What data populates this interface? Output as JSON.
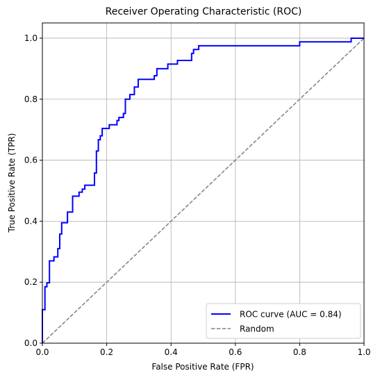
{
  "chart_data": {
    "type": "line",
    "title": "Receiver Operating Characteristic (ROC)",
    "xlabel": "False Positive Rate (FPR)",
    "ylabel": "True Positive Rate (TPR)",
    "xlim": [
      0,
      1
    ],
    "ylim": [
      0,
      1.05
    ],
    "xticks": [
      "0.0",
      "0.2",
      "0.4",
      "0.6",
      "0.8",
      "1.0"
    ],
    "yticks": [
      "0.0",
      "0.2",
      "0.4",
      "0.6",
      "0.8",
      "1.0"
    ],
    "grid": true,
    "legend_position": "bottom-right",
    "series": [
      {
        "name": "ROC curve (AUC = 0.84)",
        "color": "#0000ff",
        "style": "solid",
        "points": [
          [
            0.0,
            0.0
          ],
          [
            0.0,
            0.11
          ],
          [
            0.008,
            0.11
          ],
          [
            0.008,
            0.185
          ],
          [
            0.014,
            0.185
          ],
          [
            0.014,
            0.198
          ],
          [
            0.022,
            0.198
          ],
          [
            0.022,
            0.27
          ],
          [
            0.036,
            0.27
          ],
          [
            0.036,
            0.283
          ],
          [
            0.048,
            0.283
          ],
          [
            0.048,
            0.31
          ],
          [
            0.054,
            0.31
          ],
          [
            0.054,
            0.358
          ],
          [
            0.06,
            0.358
          ],
          [
            0.06,
            0.395
          ],
          [
            0.078,
            0.395
          ],
          [
            0.078,
            0.43
          ],
          [
            0.094,
            0.43
          ],
          [
            0.094,
            0.482
          ],
          [
            0.114,
            0.482
          ],
          [
            0.114,
            0.495
          ],
          [
            0.124,
            0.495
          ],
          [
            0.124,
            0.505
          ],
          [
            0.132,
            0.505
          ],
          [
            0.132,
            0.518
          ],
          [
            0.162,
            0.518
          ],
          [
            0.162,
            0.558
          ],
          [
            0.168,
            0.558
          ],
          [
            0.168,
            0.63
          ],
          [
            0.174,
            0.63
          ],
          [
            0.174,
            0.667
          ],
          [
            0.18,
            0.667
          ],
          [
            0.18,
            0.68
          ],
          [
            0.186,
            0.68
          ],
          [
            0.186,
            0.704
          ],
          [
            0.208,
            0.704
          ],
          [
            0.208,
            0.716
          ],
          [
            0.232,
            0.716
          ],
          [
            0.232,
            0.73
          ],
          [
            0.238,
            0.73
          ],
          [
            0.238,
            0.74
          ],
          [
            0.252,
            0.74
          ],
          [
            0.252,
            0.753
          ],
          [
            0.258,
            0.753
          ],
          [
            0.258,
            0.8
          ],
          [
            0.272,
            0.8
          ],
          [
            0.272,
            0.815
          ],
          [
            0.286,
            0.815
          ],
          [
            0.286,
            0.84
          ],
          [
            0.298,
            0.84
          ],
          [
            0.298,
            0.865
          ],
          [
            0.348,
            0.865
          ],
          [
            0.348,
            0.877
          ],
          [
            0.356,
            0.877
          ],
          [
            0.356,
            0.9
          ],
          [
            0.39,
            0.9
          ],
          [
            0.39,
            0.915
          ],
          [
            0.42,
            0.915
          ],
          [
            0.42,
            0.927
          ],
          [
            0.464,
            0.927
          ],
          [
            0.464,
            0.95
          ],
          [
            0.47,
            0.95
          ],
          [
            0.47,
            0.963
          ],
          [
            0.486,
            0.963
          ],
          [
            0.486,
            0.975
          ],
          [
            0.8,
            0.975
          ],
          [
            0.8,
            0.988
          ],
          [
            0.96,
            0.988
          ],
          [
            0.96,
            1.0
          ],
          [
            1.0,
            1.0
          ]
        ]
      },
      {
        "name": "Random",
        "color": "#808080",
        "style": "dashed",
        "points": [
          [
            0,
            0
          ],
          [
            1,
            1
          ]
        ]
      }
    ]
  }
}
